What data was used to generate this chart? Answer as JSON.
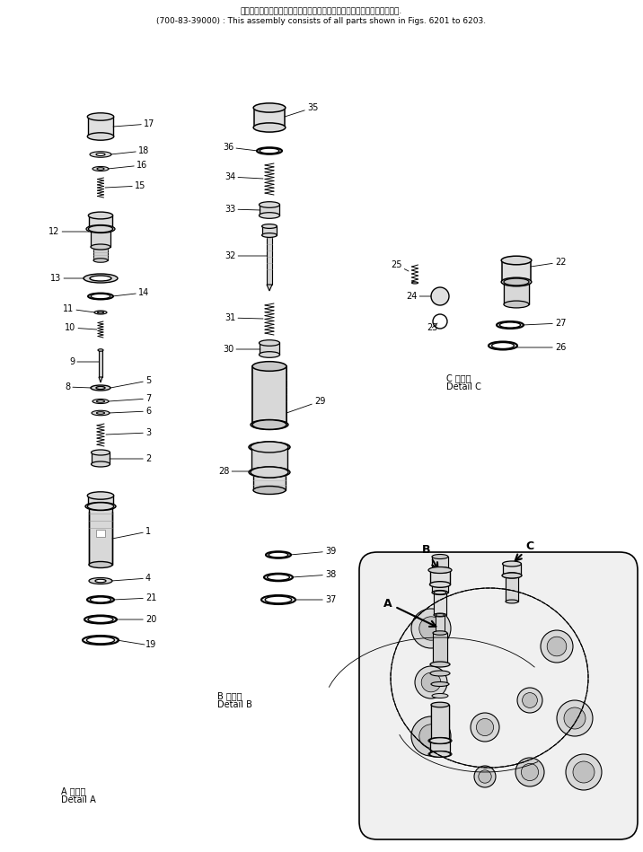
{
  "title_line1": "このアセンブリの構成部品は第６２０１図から第６２０３図まで含みます.",
  "title_line2": "(700-83-39000) : This assembly consists of all parts shown in Figs. 6201 to 6203.",
  "detail_a_label_l1": "A 詳細図",
  "detail_a_label_l2": "Detail A",
  "detail_b_label_l1": "B 詳細図",
  "detail_b_label_l2": "Detail B",
  "detail_c_label_l1": "C 詳細図",
  "detail_c_label_l2": "Detail C",
  "bg_color": "#ffffff",
  "line_color": "#000000",
  "text_color": "#000000",
  "fig_width": 7.16,
  "fig_height": 9.49
}
